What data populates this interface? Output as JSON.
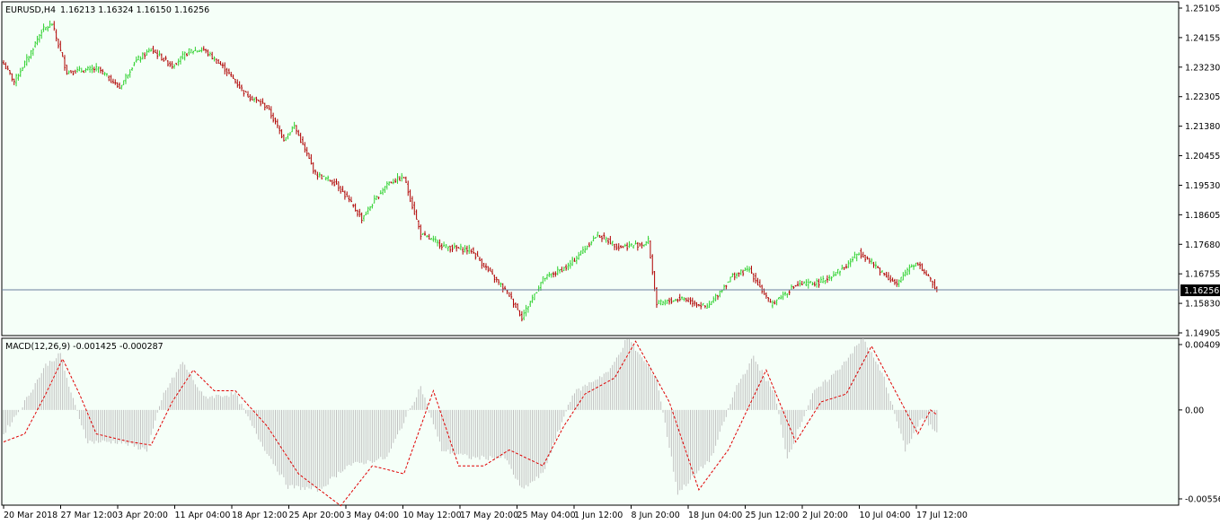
{
  "colors": {
    "background": "#f5fff8",
    "up_bar": "#2fd12f",
    "down_bar": "#b00000",
    "price_line": "#6b7f9e",
    "histogram": "#c0c0c0",
    "signal_line": "#e00000",
    "axis": "#000000"
  },
  "header": {
    "symbol_label": "EURUSD,H4",
    "ohlc_label": "1.16213 1.16324 1.16150 1.16256"
  },
  "price_panel": {
    "y_ticks": [
      "1.25105",
      "1.24155",
      "1.23230",
      "1.22305",
      "1.21380",
      "1.20455",
      "1.19530",
      "1.18605",
      "1.17680",
      "1.16755",
      "1.15830",
      "1.14905"
    ],
    "current_price_label": "1.16256"
  },
  "macd_panel": {
    "label": "MACD(12,26,9) -0.001425 -0.000287",
    "y_ticks": [
      "0.004094",
      "0.00",
      "-0.005569"
    ]
  },
  "x_axis": {
    "labels": [
      "20 Mar 2018",
      "27 Mar 12:00",
      "3 Apr 20:00",
      "11 Apr 04:00",
      "18 Apr 12:00",
      "25 Apr 20:00",
      "3 May 04:00",
      "10 May 12:00",
      "17 May 20:00",
      "25 May 04:00",
      "1 Jun 12:00",
      "8 Jun 20:00",
      "18 Jun 04:00",
      "25 Jun 12:00",
      "2 Jul 20:00",
      "10 Jul 04:00",
      "17 Jul 12:00"
    ]
  },
  "chart_data": [
    {
      "type": "ohlc",
      "symbol": "EURUSD",
      "timeframe": "H4",
      "ylim": [
        1.14905,
        1.25105
      ],
      "current_price": 1.16256,
      "last_bar": {
        "open": 1.16213,
        "high": 1.16324,
        "low": 1.1615,
        "close": 1.16256
      },
      "close_path": [
        {
          "bar": 0,
          "close": 1.2335
        },
        {
          "bar": 5,
          "close": 1.228
        },
        {
          "bar": 12,
          "close": 1.236
        },
        {
          "bar": 18,
          "close": 1.244
        },
        {
          "bar": 23,
          "close": 1.246
        },
        {
          "bar": 30,
          "close": 1.231
        },
        {
          "bar": 45,
          "close": 1.232
        },
        {
          "bar": 55,
          "close": 1.226
        },
        {
          "bar": 62,
          "close": 1.234
        },
        {
          "bar": 70,
          "close": 1.238
        },
        {
          "bar": 80,
          "close": 1.233
        },
        {
          "bar": 88,
          "close": 1.2375
        },
        {
          "bar": 95,
          "close": 1.238
        },
        {
          "bar": 105,
          "close": 1.232
        },
        {
          "bar": 115,
          "close": 1.224
        },
        {
          "bar": 125,
          "close": 1.22
        },
        {
          "bar": 133,
          "close": 1.21
        },
        {
          "bar": 138,
          "close": 1.214
        },
        {
          "bar": 148,
          "close": 1.199
        },
        {
          "bar": 158,
          "close": 1.196
        },
        {
          "bar": 170,
          "close": 1.185
        },
        {
          "bar": 182,
          "close": 1.196
        },
        {
          "bar": 190,
          "close": 1.198
        },
        {
          "bar": 198,
          "close": 1.18
        },
        {
          "bar": 210,
          "close": 1.176
        },
        {
          "bar": 222,
          "close": 1.175
        },
        {
          "bar": 232,
          "close": 1.167
        },
        {
          "bar": 240,
          "close": 1.161
        },
        {
          "bar": 246,
          "close": 1.154
        },
        {
          "bar": 256,
          "close": 1.166
        },
        {
          "bar": 268,
          "close": 1.17
        },
        {
          "bar": 282,
          "close": 1.18
        },
        {
          "bar": 292,
          "close": 1.176
        },
        {
          "bar": 304,
          "close": 1.177
        },
        {
          "bar": 306,
          "close": 1.178
        },
        {
          "bar": 310,
          "close": 1.158
        },
        {
          "bar": 322,
          "close": 1.16
        },
        {
          "bar": 334,
          "close": 1.157
        },
        {
          "bar": 346,
          "close": 1.167
        },
        {
          "bar": 354,
          "close": 1.169
        },
        {
          "bar": 364,
          "close": 1.158
        },
        {
          "bar": 376,
          "close": 1.164
        },
        {
          "bar": 388,
          "close": 1.165
        },
        {
          "bar": 400,
          "close": 1.17
        },
        {
          "bar": 406,
          "close": 1.1745
        },
        {
          "bar": 414,
          "close": 1.17
        },
        {
          "bar": 424,
          "close": 1.164
        },
        {
          "bar": 430,
          "close": 1.17
        },
        {
          "bar": 434,
          "close": 1.171
        },
        {
          "bar": 443,
          "close": 1.16256
        }
      ]
    },
    {
      "type": "macd",
      "params": [
        12,
        26,
        9
      ],
      "main": -0.001425,
      "signal": -0.000287,
      "ylim": [
        -0.005569,
        0.004094
      ],
      "histogram_path": [
        {
          "bar": 0,
          "value": -0.0015
        },
        {
          "bar": 10,
          "value": 0.0005
        },
        {
          "bar": 20,
          "value": 0.0028
        },
        {
          "bar": 27,
          "value": 0.0035
        },
        {
          "bar": 32,
          "value": 0.001
        },
        {
          "bar": 40,
          "value": -0.002
        },
        {
          "bar": 55,
          "value": -0.002
        },
        {
          "bar": 68,
          "value": -0.0025
        },
        {
          "bar": 76,
          "value": 0.001
        },
        {
          "bar": 85,
          "value": 0.003
        },
        {
          "bar": 95,
          "value": 0.0008
        },
        {
          "bar": 110,
          "value": 0.001
        },
        {
          "bar": 122,
          "value": -0.002
        },
        {
          "bar": 135,
          "value": -0.0048
        },
        {
          "bar": 150,
          "value": -0.005
        },
        {
          "bar": 163,
          "value": -0.0035
        },
        {
          "bar": 182,
          "value": -0.003
        },
        {
          "bar": 198,
          "value": 0.0015
        },
        {
          "bar": 208,
          "value": -0.0025
        },
        {
          "bar": 222,
          "value": -0.003
        },
        {
          "bar": 238,
          "value": -0.003
        },
        {
          "bar": 246,
          "value": -0.005
        },
        {
          "bar": 256,
          "value": -0.004
        },
        {
          "bar": 270,
          "value": 0.001
        },
        {
          "bar": 288,
          "value": 0.0025
        },
        {
          "bar": 296,
          "value": 0.0045
        },
        {
          "bar": 310,
          "value": 0.002
        },
        {
          "bar": 320,
          "value": -0.0052
        },
        {
          "bar": 336,
          "value": -0.003
        },
        {
          "bar": 348,
          "value": 0.0015
        },
        {
          "bar": 356,
          "value": 0.0033
        },
        {
          "bar": 366,
          "value": 0.001
        },
        {
          "bar": 372,
          "value": -0.003
        },
        {
          "bar": 384,
          "value": 0.001
        },
        {
          "bar": 396,
          "value": 0.0025
        },
        {
          "bar": 408,
          "value": 0.0045
        },
        {
          "bar": 418,
          "value": 0.002
        },
        {
          "bar": 428,
          "value": -0.0025
        },
        {
          "bar": 436,
          "value": -0.0005
        },
        {
          "bar": 443,
          "value": -0.0014
        }
      ],
      "signal_path": [
        {
          "bar": 0,
          "value": -0.002
        },
        {
          "bar": 10,
          "value": -0.0015
        },
        {
          "bar": 20,
          "value": 0.001
        },
        {
          "bar": 28,
          "value": 0.0032
        },
        {
          "bar": 36,
          "value": 0.001
        },
        {
          "bar": 44,
          "value": -0.0015
        },
        {
          "bar": 60,
          "value": -0.002
        },
        {
          "bar": 70,
          "value": -0.0022
        },
        {
          "bar": 80,
          "value": 0.0005
        },
        {
          "bar": 90,
          "value": 0.0025
        },
        {
          "bar": 100,
          "value": 0.0012
        },
        {
          "bar": 110,
          "value": 0.0012
        },
        {
          "bar": 125,
          "value": -0.001
        },
        {
          "bar": 140,
          "value": -0.004
        },
        {
          "bar": 160,
          "value": -0.006
        },
        {
          "bar": 175,
          "value": -0.0035
        },
        {
          "bar": 190,
          "value": -0.004
        },
        {
          "bar": 204,
          "value": 0.0012
        },
        {
          "bar": 216,
          "value": -0.0035
        },
        {
          "bar": 228,
          "value": -0.0035
        },
        {
          "bar": 240,
          "value": -0.0025
        },
        {
          "bar": 256,
          "value": -0.0035
        },
        {
          "bar": 266,
          "value": -0.001
        },
        {
          "bar": 276,
          "value": 0.001
        },
        {
          "bar": 290,
          "value": 0.002
        },
        {
          "bar": 300,
          "value": 0.0043
        },
        {
          "bar": 316,
          "value": 0.0005
        },
        {
          "bar": 330,
          "value": -0.005
        },
        {
          "bar": 344,
          "value": -0.0025
        },
        {
          "bar": 362,
          "value": 0.0025
        },
        {
          "bar": 376,
          "value": -0.002
        },
        {
          "bar": 388,
          "value": 0.0005
        },
        {
          "bar": 400,
          "value": 0.001
        },
        {
          "bar": 412,
          "value": 0.004
        },
        {
          "bar": 424,
          "value": 0.001
        },
        {
          "bar": 434,
          "value": -0.0015
        },
        {
          "bar": 440,
          "value": 0.0
        },
        {
          "bar": 443,
          "value": -0.0003
        }
      ]
    }
  ]
}
